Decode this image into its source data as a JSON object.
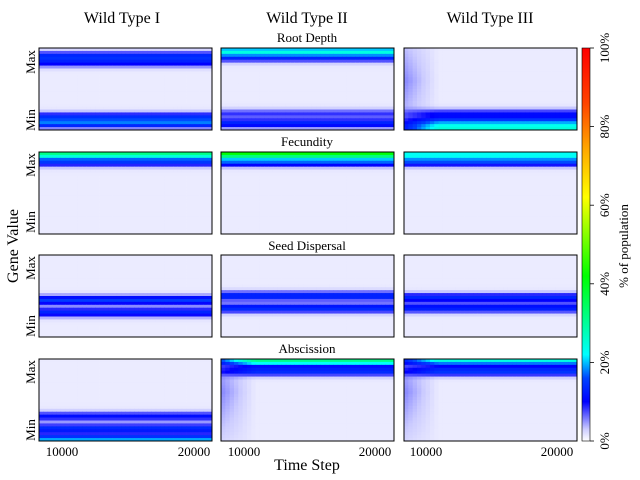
{
  "chart_data": {
    "type": "heatmap",
    "columns": [
      "Wild Type I",
      "Wild Type II",
      "Wild Type III"
    ],
    "rows": [
      "Root Depth",
      "Fecundity",
      "Seed Dispersal",
      "Abscission"
    ],
    "xlabel": "Time Step",
    "ylabel": "Gene Value",
    "y_tick_labels": [
      "Min",
      "Max"
    ],
    "x_ticks": [
      10000,
      20000
    ],
    "x_tick_labels": [
      "10000",
      "20000"
    ],
    "colorbar": {
      "label": "% of population",
      "ticks": [
        0,
        20,
        40,
        60,
        80,
        100
      ],
      "tick_labels": [
        "0%",
        "20%",
        "40%",
        "60%",
        "80%",
        "100%"
      ],
      "colormap": "gist_ncar-like (white → blue → cyan → green → yellow → orange → red)"
    },
    "panels": [
      {
        "row": "Root Depth",
        "column": "Wild Type I",
        "bands": [
          {
            "at": 0.08,
            "peak": 0.15
          },
          {
            "at": 0.16,
            "peak": 0.11
          },
          {
            "at": 0.82,
            "peak": 0.09
          },
          {
            "at": 0.9,
            "peak": 0.12
          }
        ]
      },
      {
        "row": "Root Depth",
        "column": "Wild Type II",
        "bands": [
          {
            "at": 0.08,
            "peak": 0.12
          },
          {
            "at": 0.2,
            "peak": 0.07
          },
          {
            "at": 0.88,
            "peak": 0.1
          },
          {
            "at": 0.96,
            "peak": 0.22
          }
        ]
      },
      {
        "row": "Root Depth",
        "column": "Wild Type III",
        "bands": [
          {
            "at": 0.02,
            "peak": 0.22
          },
          {
            "at": 0.1,
            "peak": 0.14
          },
          {
            "at": 0.2,
            "peak": 0.09
          }
        ],
        "early_spread_top": true
      },
      {
        "row": "Fecundity",
        "column": "Wild Type I",
        "bands": [
          {
            "at": 0.98,
            "peak": 0.3
          },
          {
            "at": 0.88,
            "peak": 0.13
          }
        ]
      },
      {
        "row": "Fecundity",
        "column": "Wild Type II",
        "bands": [
          {
            "at": 0.98,
            "peak": 0.4
          },
          {
            "at": 0.88,
            "peak": 0.15
          }
        ]
      },
      {
        "row": "Fecundity",
        "column": "Wild Type III",
        "bands": [
          {
            "at": 0.97,
            "peak": 0.22
          },
          {
            "at": 0.88,
            "peak": 0.14
          }
        ]
      },
      {
        "row": "Seed Dispersal",
        "column": "Wild Type I",
        "bands": [
          {
            "at": 0.45,
            "peak": 0.14
          },
          {
            "at": 0.3,
            "peak": 0.12
          }
        ]
      },
      {
        "row": "Seed Dispersal",
        "column": "Wild Type II",
        "bands": [
          {
            "at": 0.5,
            "peak": 0.13
          },
          {
            "at": 0.35,
            "peak": 0.13
          }
        ]
      },
      {
        "row": "Seed Dispersal",
        "column": "Wild Type III",
        "bands": [
          {
            "at": 0.48,
            "peak": 0.12
          },
          {
            "at": 0.35,
            "peak": 0.12
          }
        ]
      },
      {
        "row": "Abscission",
        "column": "Wild Type I",
        "bands": [
          {
            "at": 0.02,
            "peak": 0.18
          },
          {
            "at": 0.15,
            "peak": 0.13
          },
          {
            "at": 0.3,
            "peak": 0.1
          }
        ]
      },
      {
        "row": "Abscission",
        "column": "Wild Type II",
        "bands": [
          {
            "at": 0.98,
            "peak": 0.3
          },
          {
            "at": 0.85,
            "peak": 0.13
          }
        ],
        "early_spread_top": true
      },
      {
        "row": "Abscission",
        "column": "Wild Type III",
        "bands": [
          {
            "at": 0.98,
            "peak": 0.23
          },
          {
            "at": 0.85,
            "peak": 0.14
          }
        ],
        "early_spread_top": true
      }
    ]
  }
}
